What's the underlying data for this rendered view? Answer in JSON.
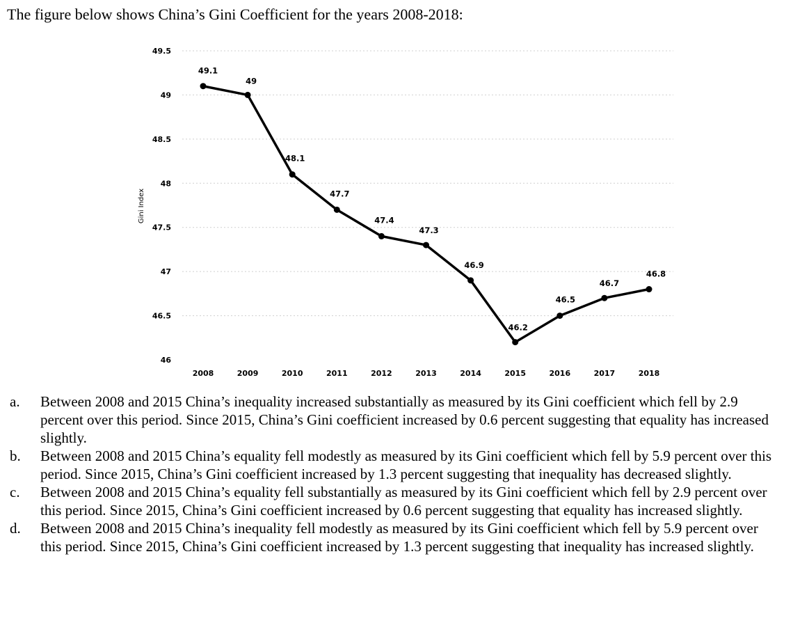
{
  "question": {
    "text": "The figure below shows China’s Gini Coefficient for the years 2008-2018:"
  },
  "chart_data": {
    "type": "line",
    "title": "",
    "xlabel": "",
    "ylabel": "Gini Index",
    "categories": [
      "2008",
      "2009",
      "2010",
      "2011",
      "2012",
      "2013",
      "2014",
      "2015",
      "2016",
      "2017",
      "2018"
    ],
    "series": [
      {
        "values": [
          49.1,
          49,
          48.1,
          47.7,
          47.4,
          47.3,
          46.9,
          46.2,
          46.5,
          46.7,
          46.8
        ]
      }
    ],
    "data_labels": [
      "49.1",
      "49",
      "48.1",
      "47.7",
      "47.4",
      "47.3",
      "46.9",
      "46.2",
      "46.5",
      "46.7",
      "46.8"
    ],
    "ylim": [
      46,
      49.5
    ],
    "yticks": [
      "46",
      "46.5",
      "47",
      "47.5",
      "48",
      "48.5",
      "49",
      "49.5"
    ],
    "grid": true,
    "legend": "none"
  },
  "options": [
    {
      "letter": "a.",
      "text": "Between 2008 and 2015 China’s inequality increased substantially as measured by its Gini coefficient which fell by 2.9 percent over this period. Since 2015, China’s Gini coefficient increased by 0.6 percent suggesting that equality has increased slightly."
    },
    {
      "letter": "b.",
      "text": "Between 2008 and 2015 China’s equality fell modestly as measured by its Gini coefficient which fell by 5.9 percent over this period. Since 2015, China’s Gini coefficient increased by 1.3 percent suggesting that inequality has decreased slightly."
    },
    {
      "letter": "c.",
      "text": "Between 2008 and 2015 China’s equality fell substantially as measured by its Gini coefficient which fell by 2.9 percent over this period. Since 2015, China’s Gini coefficient increased by 0.6 percent suggesting that equality has increased slightly."
    },
    {
      "letter": "d.",
      "text": "Between 2008 and 2015 China’s inequality fell modestly as measured by its Gini coefficient which fell by 5.9 percent over this period. Since 2015, China’s Gini coefficient increased by 1.3 percent suggesting that inequality has increased slightly."
    }
  ]
}
